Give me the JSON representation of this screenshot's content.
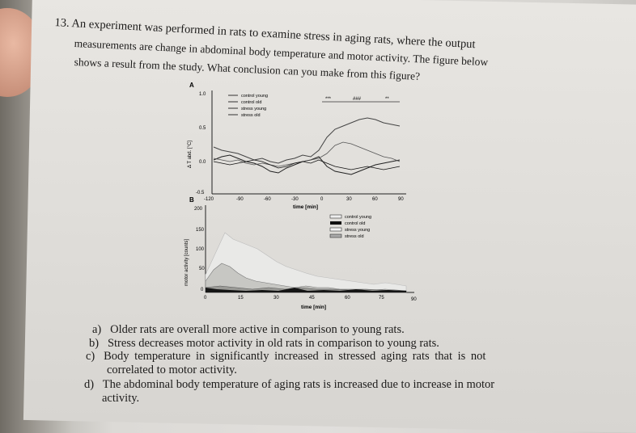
{
  "question": {
    "number": "13.",
    "lines": [
      "An experiment was performed in rats to examine stress in aging rats, where the output",
      "measurements are change in abdominal body temperature and motor activity. The figure below",
      "shows a result from the study. What conclusion can you make from this figure?"
    ]
  },
  "panel_a": {
    "panel_label": "A",
    "ylabel": "Δ T abd. [°C]",
    "xlabel": "time [min]",
    "yticks": [
      "1.0",
      "0.5",
      "0.0",
      "-0.5"
    ],
    "xticks": [
      "-120",
      "-90",
      "-60",
      "-30",
      "0",
      "30",
      "60",
      "90"
    ],
    "legend": [
      "control young",
      "control old",
      "stress young",
      "stress old"
    ],
    "significance": [
      "***",
      "###",
      "**"
    ]
  },
  "panel_b": {
    "panel_label": "B",
    "ylabel": "motor activity [counts]",
    "xlabel": "time [min]",
    "yticks": [
      "200",
      "150",
      "100",
      "50",
      "0"
    ],
    "xticks": [
      "0",
      "15",
      "30",
      "45",
      "60",
      "75",
      "90"
    ],
    "legend": [
      "control young",
      "control old",
      "stress young",
      "stress old"
    ]
  },
  "answers": [
    {
      "letter": "a)",
      "text": "Older rats are overall more active in comparison to young rats."
    },
    {
      "letter": "b)",
      "text": "Stress decreases motor activity in old rats in comparison to young rats."
    },
    {
      "letter": "c)",
      "text": "Body temperature in significantly increased in stressed aging rats that is not"
    },
    {
      "letter": "",
      "text": "correlated to motor activity."
    },
    {
      "letter": "d)",
      "text": "The abdominal body temperature of aging rats is increased due to increase in motor"
    },
    {
      "letter": "",
      "text": "activity."
    }
  ]
}
